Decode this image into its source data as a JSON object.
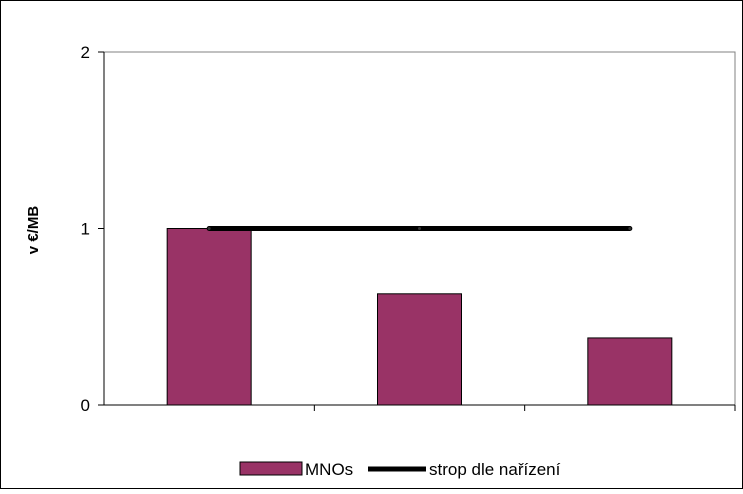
{
  "chart_data": {
    "type": "bar",
    "categories": [
      "",
      "",
      ""
    ],
    "series": [
      {
        "name": "MNOs",
        "kind": "bar",
        "color": "#993366",
        "values": [
          1.0,
          0.63,
          0.38
        ]
      },
      {
        "name": "strop dle nařízení",
        "kind": "line",
        "color": "#000000",
        "values": [
          1.0,
          1.0,
          1.0
        ]
      }
    ],
    "ylabel": "v €/MB",
    "ylim": [
      0,
      2
    ],
    "yticks": [
      "0",
      "1",
      "2"
    ],
    "grid": false,
    "legend_position": "bottom"
  }
}
